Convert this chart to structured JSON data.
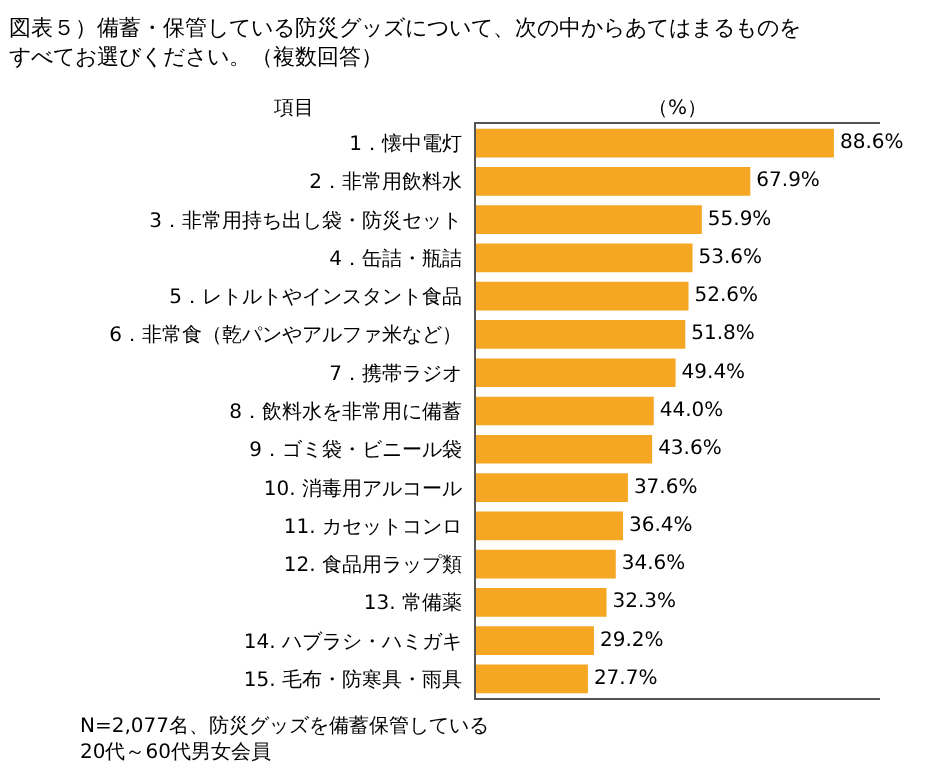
{
  "chart_data": {
    "type": "bar",
    "orientation": "horizontal",
    "title": "図表５）備蓄・保管している防災グッズについて、次の中からあてはまるものを",
    "subtitle": "すべてお選びください。（複数回答）",
    "categories": [
      "1．懐中電灯",
      "2．非常用飲料水",
      "3．非常用持ち出し袋・防災セット",
      "4．缶詰・瓶詰",
      "5．レトルトやインスタント食品",
      "6．非常食（乾パンやアルファ米など）",
      "7．携帯ラジオ",
      "8．飲料水を非常用に備蓄",
      "9．ゴミ袋・ビニール袋",
      "10. 消毒用アルコール",
      "11. カセットコンロ",
      "12. 食品用ラップ類",
      "13. 常備薬",
      "14. ハブラシ・ハミガキ",
      "15. 毛布・防寒具・雨具"
    ],
    "values": [
      88.6,
      67.9,
      55.9,
      53.6,
      52.6,
      51.8,
      49.4,
      44.0,
      43.6,
      37.6,
      36.4,
      34.6,
      32.3,
      29.2,
      27.7
    ],
    "value_labels": [
      "88.6%",
      "67.9%",
      "55.9%",
      "53.6%",
      "52.6%",
      "51.8%",
      "49.4%",
      "44.0%",
      "43.6%",
      "37.6%",
      "36.4%",
      "34.6%",
      "32.3%",
      "29.2%",
      "27.7%"
    ],
    "color": "#f5a623",
    "xlim": [
      0,
      100
    ],
    "tick_labels": "y",
    "annotations": [
      "項目",
      "（%）",
      "N=2,077名、防災グッズを備蓄保管している\n20代～60代男女会員"
    ]
  }
}
